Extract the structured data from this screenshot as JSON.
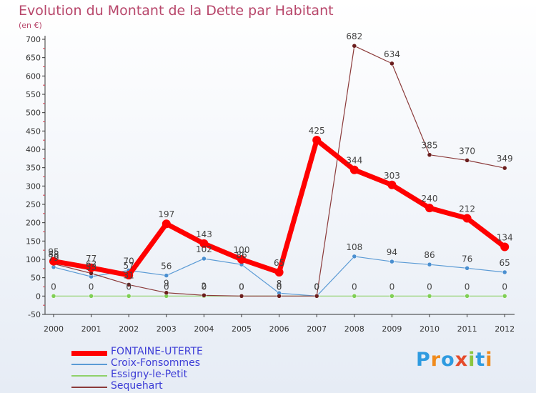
{
  "header": {
    "title": "Evolution du Montant de la Dette par Habitant",
    "unit": "(en €)"
  },
  "logo": {
    "letters": [
      "P",
      "r",
      "o",
      "x",
      "i",
      "t",
      "i"
    ]
  },
  "chart_data": {
    "type": "line",
    "title": "Evolution du Montant de la Dette par Habitant",
    "ylabel": "(en €)",
    "xlabel": "",
    "x": [
      "2000",
      "2001",
      "2002",
      "2003",
      "2004",
      "2005",
      "2006",
      "2007",
      "2008",
      "2009",
      "2010",
      "2011",
      "2012"
    ],
    "ylim": [
      -50,
      700
    ],
    "yticks": [
      -50,
      0,
      50,
      100,
      150,
      200,
      250,
      300,
      350,
      400,
      450,
      500,
      550,
      600,
      650,
      700
    ],
    "grid": false,
    "legend": "bottom-left",
    "series": [
      {
        "name": "FONTAINE-UTERTE",
        "color": "#ff0000",
        "values": [
          95,
          77,
          57,
          197,
          143,
          100,
          65,
          425,
          344,
          303,
          240,
          212,
          134
        ]
      },
      {
        "name": "Croix-Fonsommes",
        "color": "#5b9bd5",
        "values": [
          79,
          53,
          70,
          56,
          102,
          86,
          8,
          0,
          108,
          94,
          86,
          76,
          65
        ]
      },
      {
        "name": "Essigny-le-Petit",
        "color": "#8fd16a",
        "values": [
          0,
          0,
          0,
          0,
          0,
          0,
          0,
          0,
          0,
          0,
          0,
          0,
          0
        ]
      },
      {
        "name": "Sequehart",
        "color": "#8b3a3a",
        "values": [
          88,
          62,
          31,
          9,
          2,
          0,
          0,
          0,
          682,
          634,
          385,
          370,
          349
        ]
      }
    ]
  }
}
